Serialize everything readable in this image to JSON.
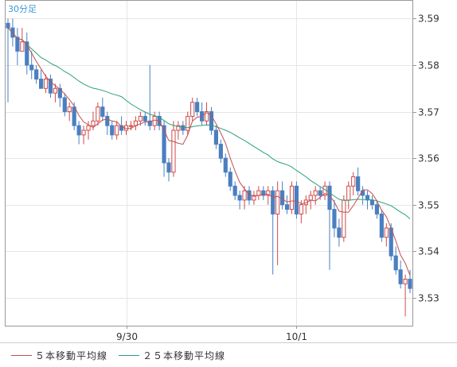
{
  "chart_data": {
    "type": "candlestick",
    "interval_label": "30分足",
    "ylim": [
      3.524,
      3.594
    ],
    "yticks": [
      "3.59",
      "3.58",
      "3.57",
      "3.56",
      "3.55",
      "3.54",
      "3.53"
    ],
    "xticks": [
      "9/30",
      "10/1"
    ],
    "x_count": 86,
    "xtick_index": [
      25,
      61
    ],
    "grid": true,
    "legend_position": "bottom",
    "colors": {
      "up": "#cf4a4a",
      "down": "#4a7fc1",
      "ma5": "#c0504d",
      "ma25": "#2aa07a",
      "grid": "#e6e6e6",
      "frame": "#999999"
    },
    "series": [
      {
        "name": "５本移動平均線",
        "key": "ma5"
      },
      {
        "name": "２５本移動平均線",
        "key": "ma25"
      }
    ],
    "candles": [
      [
        3.589,
        3.59,
        3.572,
        3.588
      ],
      [
        3.588,
        3.59,
        3.584,
        3.586
      ],
      [
        3.586,
        3.588,
        3.58,
        3.583
      ],
      [
        3.583,
        3.588,
        3.583,
        3.585
      ],
      [
        3.585,
        3.587,
        3.578,
        3.58
      ],
      [
        3.58,
        3.583,
        3.577,
        3.579
      ],
      [
        3.579,
        3.58,
        3.576,
        3.577
      ],
      [
        3.577,
        3.579,
        3.575,
        3.575
      ],
      [
        3.575,
        3.578,
        3.574,
        3.577
      ],
      [
        3.577,
        3.578,
        3.573,
        3.574
      ],
      [
        3.574,
        3.576,
        3.572,
        3.575
      ],
      [
        3.575,
        3.576,
        3.571,
        3.573
      ],
      [
        3.573,
        3.574,
        3.569,
        3.57
      ],
      [
        3.57,
        3.572,
        3.568,
        3.571
      ],
      [
        3.571,
        3.572,
        3.566,
        3.567
      ],
      [
        3.567,
        3.568,
        3.563,
        3.565
      ],
      [
        3.565,
        3.567,
        3.563,
        3.566
      ],
      [
        3.566,
        3.568,
        3.564,
        3.567
      ],
      [
        3.567,
        3.57,
        3.566,
        3.568
      ],
      [
        3.568,
        3.572,
        3.567,
        3.571
      ],
      [
        3.571,
        3.573,
        3.568,
        3.569
      ],
      [
        3.569,
        3.57,
        3.565,
        3.567
      ],
      [
        3.567,
        3.568,
        3.564,
        3.565
      ],
      [
        3.565,
        3.568,
        3.564,
        3.567
      ],
      [
        3.567,
        3.569,
        3.565,
        3.566
      ],
      [
        3.566,
        3.568,
        3.565,
        3.567
      ],
      [
        3.567,
        3.568,
        3.566,
        3.567
      ],
      [
        3.567,
        3.569,
        3.566,
        3.568
      ],
      [
        3.568,
        3.57,
        3.567,
        3.569
      ],
      [
        3.569,
        3.57,
        3.567,
        3.568
      ],
      [
        3.568,
        3.58,
        3.566,
        3.567
      ],
      [
        3.567,
        3.57,
        3.566,
        3.569
      ],
      [
        3.569,
        3.57,
        3.566,
        3.567
      ],
      [
        3.567,
        3.568,
        3.556,
        3.559
      ],
      [
        3.559,
        3.56,
        3.555,
        3.557
      ],
      [
        3.557,
        3.568,
        3.556,
        3.566
      ],
      [
        3.566,
        3.568,
        3.564,
        3.567
      ],
      [
        3.567,
        3.568,
        3.565,
        3.566
      ],
      [
        3.566,
        3.57,
        3.565,
        3.569
      ],
      [
        3.569,
        3.573,
        3.568,
        3.572
      ],
      [
        3.572,
        3.573,
        3.569,
        3.57
      ],
      [
        3.57,
        3.572,
        3.567,
        3.568
      ],
      [
        3.568,
        3.572,
        3.567,
        3.57
      ],
      [
        3.57,
        3.571,
        3.565,
        3.566
      ],
      [
        3.566,
        3.567,
        3.562,
        3.563
      ],
      [
        3.563,
        3.564,
        3.559,
        3.56
      ],
      [
        3.56,
        3.561,
        3.556,
        3.557
      ],
      [
        3.557,
        3.558,
        3.553,
        3.554
      ],
      [
        3.554,
        3.555,
        3.551,
        3.552
      ],
      [
        3.552,
        3.553,
        3.549,
        3.551
      ],
      [
        3.551,
        3.554,
        3.549,
        3.553
      ],
      [
        3.553,
        3.554,
        3.55,
        3.551
      ],
      [
        3.551,
        3.553,
        3.55,
        3.552
      ],
      [
        3.552,
        3.554,
        3.551,
        3.553
      ],
      [
        3.553,
        3.554,
        3.551,
        3.552
      ],
      [
        3.552,
        3.554,
        3.55,
        3.553
      ],
      [
        3.553,
        3.554,
        3.535,
        3.548
      ],
      [
        3.548,
        3.555,
        3.537,
        3.553
      ],
      [
        3.553,
        3.555,
        3.549,
        3.55
      ],
      [
        3.55,
        3.552,
        3.548,
        3.549
      ],
      [
        3.549,
        3.555,
        3.548,
        3.554
      ],
      [
        3.554,
        3.555,
        3.547,
        3.548
      ],
      [
        3.548,
        3.551,
        3.546,
        3.55
      ],
      [
        3.55,
        3.552,
        3.548,
        3.551
      ],
      [
        3.551,
        3.553,
        3.549,
        3.552
      ],
      [
        3.552,
        3.554,
        3.55,
        3.553
      ],
      [
        3.553,
        3.554,
        3.551,
        3.552
      ],
      [
        3.552,
        3.555,
        3.551,
        3.554
      ],
      [
        3.554,
        3.555,
        3.536,
        3.549
      ],
      [
        3.549,
        3.551,
        3.543,
        3.545
      ],
      [
        3.545,
        3.547,
        3.541,
        3.543
      ],
      [
        3.543,
        3.552,
        3.542,
        3.551
      ],
      [
        3.551,
        3.555,
        3.549,
        3.554
      ],
      [
        3.554,
        3.557,
        3.552,
        3.556
      ],
      [
        3.556,
        3.558,
        3.552,
        3.553
      ],
      [
        3.553,
        3.554,
        3.55,
        3.552
      ],
      [
        3.552,
        3.553,
        3.549,
        3.551
      ],
      [
        3.551,
        3.552,
        3.549,
        3.55
      ],
      [
        3.55,
        3.551,
        3.547,
        3.548
      ],
      [
        3.548,
        3.549,
        3.542,
        3.543
      ],
      [
        3.543,
        3.546,
        3.541,
        3.545
      ],
      [
        3.545,
        3.546,
        3.538,
        3.539
      ],
      [
        3.539,
        3.541,
        3.535,
        3.536
      ],
      [
        3.536,
        3.538,
        3.532,
        3.533
      ],
      [
        3.533,
        3.535,
        3.526,
        3.534
      ],
      [
        3.534,
        3.536,
        3.531,
        3.532
      ]
    ]
  }
}
